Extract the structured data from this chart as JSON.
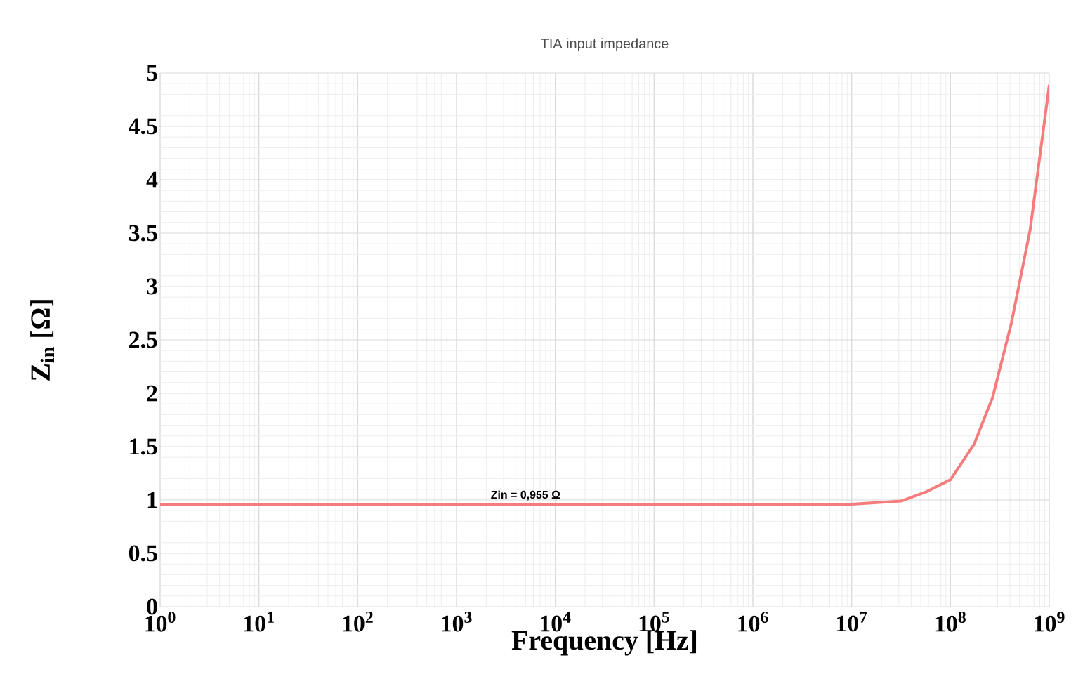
{
  "chart_data": {
    "type": "line",
    "title": "TIA input impedance",
    "xlabel": "Frequency [Hz]",
    "ylabel": "Z$_{in}$ [Ω]",
    "x": [
      1,
      10,
      100,
      1000,
      10000,
      100000,
      1000000,
      10000000,
      31600000,
      58000000,
      100000000,
      173000000,
      267000000,
      414000000,
      640000000,
      1000000000
    ],
    "series": [
      {
        "color": "#f47c7c",
        "values": [
          0.955,
          0.955,
          0.955,
          0.955,
          0.955,
          0.955,
          0.955,
          0.96,
          0.99,
          1.08,
          1.19,
          1.52,
          1.96,
          2.66,
          3.53,
          4.89
        ]
      }
    ],
    "log": "x",
    "xlim": [
      1,
      1000000000
    ],
    "ylim": [
      0,
      5
    ],
    "xticks": [
      {
        "value": 1,
        "label": "10$^{0}$"
      },
      {
        "value": 10,
        "label": "10$^{1}$"
      },
      {
        "value": 100,
        "label": "10$^{2}$"
      },
      {
        "value": 1000,
        "label": "10$^{3}$"
      },
      {
        "value": 10000,
        "label": "10$^{4}$"
      },
      {
        "value": 100000,
        "label": "10$^{5}$"
      },
      {
        "value": 1000000,
        "label": "10$^{6}$"
      },
      {
        "value": 10000000,
        "label": "10$^{7}$"
      },
      {
        "value": 100000000,
        "label": "10$^{8}$"
      },
      {
        "value": 1000000000,
        "label": "10$^{9}$"
      }
    ],
    "yticks": [
      0,
      0.5,
      1,
      1.5,
      2,
      2.5,
      3,
      3.5,
      4,
      4.5,
      5
    ],
    "grid": true,
    "marker": "none",
    "line_style": "solid",
    "annotations": [
      {
        "text": "Zin = 0,955 Ω",
        "x": 5000,
        "y": 0.955
      }
    ]
  }
}
